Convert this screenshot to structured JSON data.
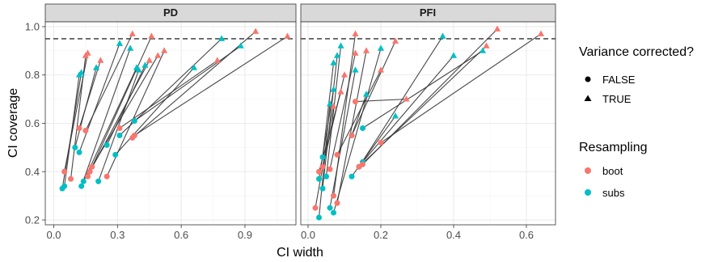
{
  "chart_data": {
    "type": "scatter",
    "xlabel": "CI width",
    "ylabel": "CI coverage",
    "reference_line": {
      "y": 0.95,
      "style": "dashed"
    },
    "grid": true,
    "legend_placement": "right",
    "colors": {
      "boot": "#F8766D",
      "subs": "#00BFC4"
    },
    "shape_legend": {
      "title": "Variance corrected?",
      "entries": [
        {
          "value": "FALSE",
          "shape": "circle"
        },
        {
          "value": "TRUE",
          "shape": "triangle"
        }
      ]
    },
    "color_legend": {
      "title": "Resampling",
      "entries": [
        {
          "value": "boot",
          "color": "#F8766D"
        },
        {
          "value": "subs",
          "color": "#00BFC4"
        }
      ]
    },
    "panels": [
      {
        "title": "PD",
        "xlim": [
          -0.04,
          1.14
        ],
        "ylim": [
          0.18,
          1.02
        ],
        "xticks": [
          0.0,
          0.3,
          0.6,
          0.9
        ],
        "xtick_labels": [
          "0.0",
          "0.3",
          "0.6",
          "0.9"
        ],
        "yticks": [
          0.2,
          0.4,
          0.6,
          0.8,
          1.0
        ],
        "ytick_labels": [
          "0.2",
          "0.4",
          "0.6",
          "0.8",
          "1.0"
        ],
        "pairs": [
          {
            "resampling": "subs",
            "x_false": 0.04,
            "y_false": 0.33,
            "x_true": 0.13,
            "y_true": 0.81
          },
          {
            "resampling": "subs",
            "x_false": 0.05,
            "y_false": 0.34,
            "x_true": 0.12,
            "y_true": 0.8
          },
          {
            "resampling": "subs",
            "x_false": 0.1,
            "y_false": 0.5,
            "x_true": 0.2,
            "y_true": 0.83
          },
          {
            "resampling": "subs",
            "x_false": 0.12,
            "y_false": 0.48,
            "x_true": 0.31,
            "y_true": 0.93
          },
          {
            "resampling": "subs",
            "x_false": 0.13,
            "y_false": 0.34,
            "x_true": 0.36,
            "y_true": 0.91
          },
          {
            "resampling": "subs",
            "x_false": 0.14,
            "y_false": 0.36,
            "x_true": 0.39,
            "y_true": 0.83
          },
          {
            "resampling": "subs",
            "x_false": 0.21,
            "y_false": 0.36,
            "x_true": 0.4,
            "y_true": 0.82
          },
          {
            "resampling": "subs",
            "x_false": 0.25,
            "y_false": 0.51,
            "x_true": 0.43,
            "y_true": 0.84
          },
          {
            "resampling": "subs",
            "x_false": 0.29,
            "y_false": 0.47,
            "x_true": 0.66,
            "y_true": 0.83
          },
          {
            "resampling": "subs",
            "x_false": 0.31,
            "y_false": 0.55,
            "x_true": 0.79,
            "y_true": 0.95
          },
          {
            "resampling": "subs",
            "x_false": 0.38,
            "y_false": 0.61,
            "x_true": 0.88,
            "y_true": 0.92
          },
          {
            "resampling": "boot",
            "x_false": 0.05,
            "y_false": 0.4,
            "x_true": 0.16,
            "y_true": 0.89
          },
          {
            "resampling": "boot",
            "x_false": 0.08,
            "y_false": 0.37,
            "x_true": 0.15,
            "y_true": 0.88
          },
          {
            "resampling": "boot",
            "x_false": 0.12,
            "y_false": 0.58,
            "x_true": 0.22,
            "y_true": 0.86
          },
          {
            "resampling": "boot",
            "x_false": 0.15,
            "y_false": 0.57,
            "x_true": 0.37,
            "y_true": 0.97
          },
          {
            "resampling": "boot",
            "x_false": 0.16,
            "y_false": 0.38,
            "x_true": 0.46,
            "y_true": 0.96
          },
          {
            "resampling": "boot",
            "x_false": 0.17,
            "y_false": 0.4,
            "x_true": 0.45,
            "y_true": 0.86
          },
          {
            "resampling": "boot",
            "x_false": 0.18,
            "y_false": 0.42,
            "x_true": 0.49,
            "y_true": 0.88
          },
          {
            "resampling": "boot",
            "x_false": 0.25,
            "y_false": 0.38,
            "x_true": 0.52,
            "y_true": 0.9
          },
          {
            "resampling": "boot",
            "x_false": 0.31,
            "y_false": 0.58,
            "x_true": 0.77,
            "y_true": 0.86
          },
          {
            "resampling": "boot",
            "x_false": 0.37,
            "y_false": 0.54,
            "x_true": 0.95,
            "y_true": 0.98
          },
          {
            "resampling": "boot",
            "x_false": 0.38,
            "y_false": 0.55,
            "x_true": 1.1,
            "y_true": 0.96
          }
        ]
      },
      {
        "title": "PFI",
        "xlim": [
          -0.02,
          0.68
        ],
        "ylim": [
          0.18,
          1.02
        ],
        "xticks": [
          0.0,
          0.2,
          0.4,
          0.6
        ],
        "xtick_labels": [
          "0.0",
          "0.2",
          "0.4",
          "0.6"
        ],
        "yticks": [
          0.2,
          0.4,
          0.6,
          0.8,
          1.0
        ],
        "ytick_labels": [
          "0.2",
          "0.4",
          "0.6",
          "0.8",
          "1.0"
        ],
        "pairs": [
          {
            "resampling": "subs",
            "x_false": 0.03,
            "y_false": 0.21,
            "x_true": 0.06,
            "y_true": 0.68
          },
          {
            "resampling": "subs",
            "x_false": 0.03,
            "y_false": 0.37,
            "x_true": 0.07,
            "y_true": 0.74
          },
          {
            "resampling": "subs",
            "x_false": 0.04,
            "y_false": 0.46,
            "x_true": 0.07,
            "y_true": 0.85
          },
          {
            "resampling": "subs",
            "x_false": 0.04,
            "y_false": 0.33,
            "x_true": 0.08,
            "y_true": 0.88
          },
          {
            "resampling": "subs",
            "x_false": 0.05,
            "y_false": 0.38,
            "x_true": 0.09,
            "y_true": 0.92
          },
          {
            "resampling": "subs",
            "x_false": 0.06,
            "y_false": 0.25,
            "x_true": 0.13,
            "y_true": 0.82
          },
          {
            "resampling": "subs",
            "x_false": 0.07,
            "y_false": 0.23,
            "x_true": 0.2,
            "y_true": 0.91
          },
          {
            "resampling": "subs",
            "x_false": 0.12,
            "y_false": 0.55,
            "x_true": 0.16,
            "y_true": 0.72
          },
          {
            "resampling": "subs",
            "x_false": 0.12,
            "y_false": 0.38,
            "x_true": 0.24,
            "y_true": 0.63
          },
          {
            "resampling": "subs",
            "x_false": 0.14,
            "y_false": 0.42,
            "x_true": 0.37,
            "y_true": 0.96
          },
          {
            "resampling": "subs",
            "x_false": 0.15,
            "y_false": 0.44,
            "x_true": 0.4,
            "y_true": 0.88
          },
          {
            "resampling": "subs",
            "x_false": 0.15,
            "y_false": 0.58,
            "x_true": 0.48,
            "y_true": 0.9
          },
          {
            "resampling": "boot",
            "x_false": 0.02,
            "y_false": 0.25,
            "x_true": 0.07,
            "y_true": 0.67
          },
          {
            "resampling": "boot",
            "x_false": 0.03,
            "y_false": 0.4,
            "x_true": 0.09,
            "y_true": 0.73
          },
          {
            "resampling": "boot",
            "x_false": 0.04,
            "y_false": 0.42,
            "x_true": 0.1,
            "y_true": 0.8
          },
          {
            "resampling": "boot",
            "x_false": 0.06,
            "y_false": 0.41,
            "x_true": 0.13,
            "y_true": 0.89
          },
          {
            "resampling": "boot",
            "x_false": 0.07,
            "y_false": 0.3,
            "x_true": 0.13,
            "y_true": 0.97
          },
          {
            "resampling": "boot",
            "x_false": 0.08,
            "y_false": 0.27,
            "x_true": 0.16,
            "y_true": 0.9
          },
          {
            "resampling": "boot",
            "x_false": 0.08,
            "y_false": 0.47,
            "x_true": 0.2,
            "y_true": 0.82
          },
          {
            "resampling": "boot",
            "x_false": 0.12,
            "y_false": 0.55,
            "x_true": 0.24,
            "y_true": 0.94
          },
          {
            "resampling": "boot",
            "x_false": 0.13,
            "y_false": 0.69,
            "x_true": 0.27,
            "y_true": 0.7
          },
          {
            "resampling": "boot",
            "x_false": 0.14,
            "y_false": 0.42,
            "x_true": 0.49,
            "y_true": 0.92
          },
          {
            "resampling": "boot",
            "x_false": 0.15,
            "y_false": 0.43,
            "x_true": 0.52,
            "y_true": 0.99
          },
          {
            "resampling": "boot",
            "x_false": 0.2,
            "y_false": 0.52,
            "x_true": 0.64,
            "y_true": 0.97
          }
        ]
      }
    ]
  }
}
